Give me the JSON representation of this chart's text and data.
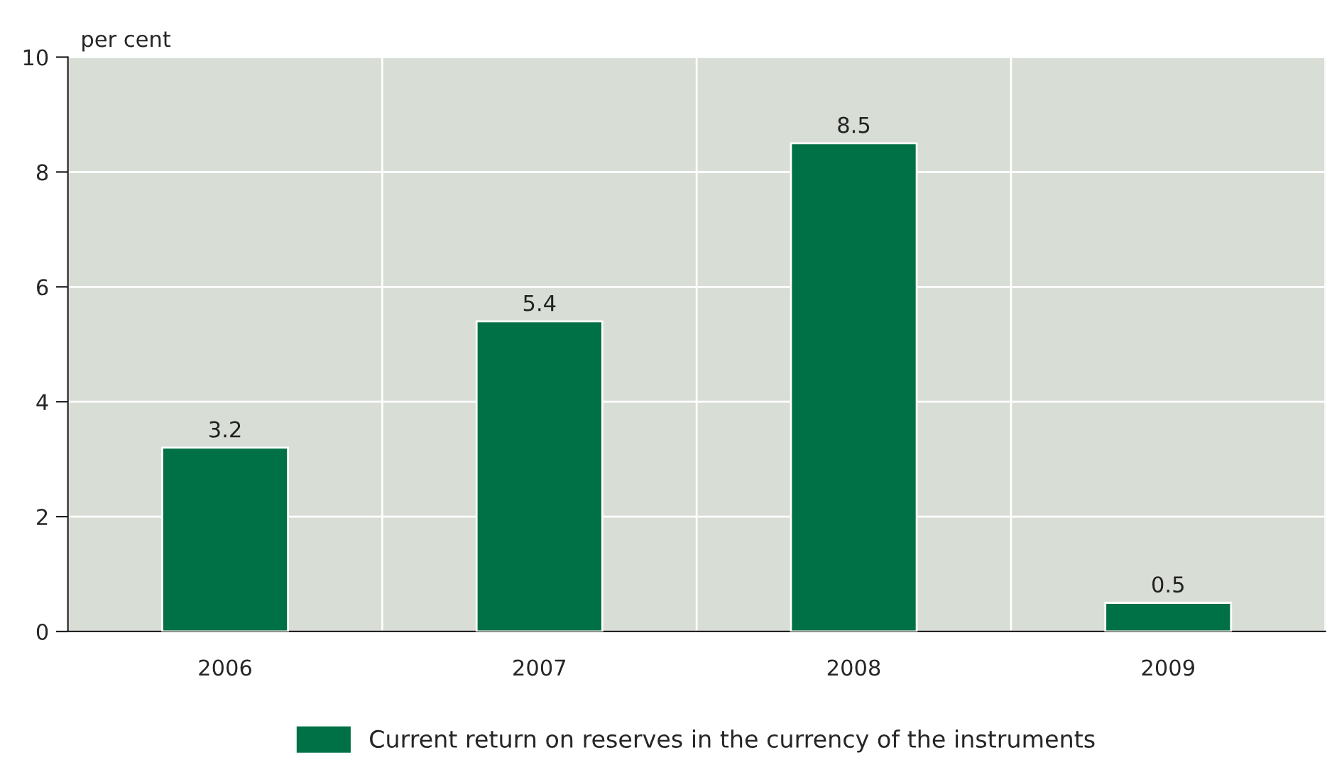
{
  "chart_data": {
    "type": "bar",
    "ylabel": "per cent",
    "categories": [
      "2006",
      "2007",
      "2008",
      "2009"
    ],
    "series": [
      {
        "name": "Current return on reserves in the currency of the instruments",
        "color": "#007046",
        "values": [
          3.2,
          5.4,
          8.5,
          0.5
        ]
      }
    ],
    "ylim": [
      0,
      10
    ],
    "yticks": [
      0,
      2,
      4,
      6,
      8,
      10
    ],
    "grid": true,
    "legend": "bottom",
    "data_labels": true
  }
}
